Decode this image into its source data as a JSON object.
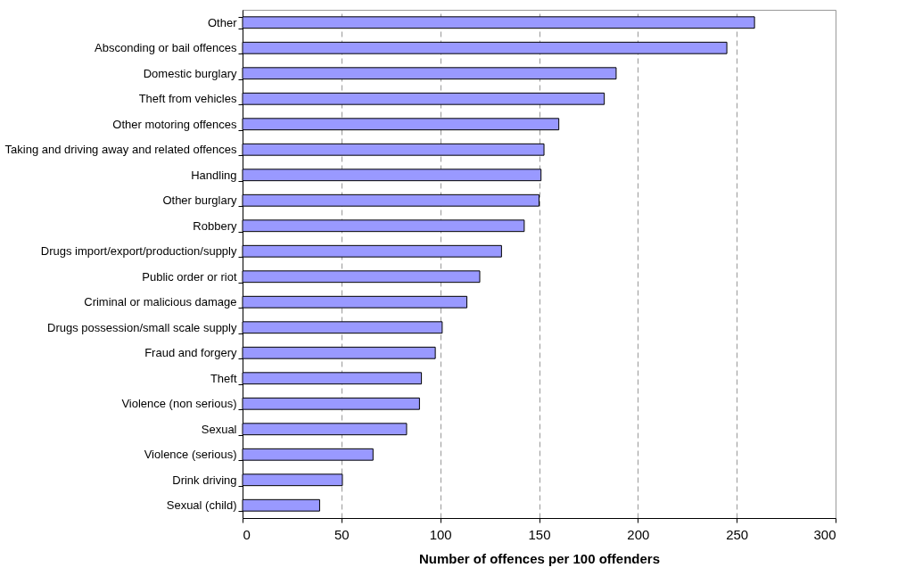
{
  "chart_data": {
    "type": "bar",
    "orientation": "horizontal",
    "xlabel": "Number of offences per 100 offenders",
    "categories": [
      "Other",
      "Absconding or bail offences",
      "Domestic burglary",
      "Theft from vehicles",
      "Other motoring offences",
      "Taking and driving away and related offences",
      "Handling",
      "Other burglary",
      "Robbery",
      "Drugs import/export/production/supply",
      "Public order or riot",
      "Criminal or malicious damage",
      "Drugs possession/small scale supply",
      "Fraud and forgery",
      "Theft",
      "Violence (non serious)",
      "Sexual",
      "Violence (serious)",
      "Drink driving",
      "Sexual (child)"
    ],
    "values": [
      259,
      245,
      189,
      183,
      160,
      152.5,
      151,
      150,
      142.5,
      131,
      120,
      113.5,
      101,
      97.5,
      90.5,
      89.5,
      83,
      66,
      50.5,
      39
    ],
    "color": "#9999ff",
    "xlim": [
      0,
      300
    ],
    "xticks": [
      0,
      50,
      100,
      150,
      200,
      250,
      300
    ],
    "grid": "x"
  }
}
